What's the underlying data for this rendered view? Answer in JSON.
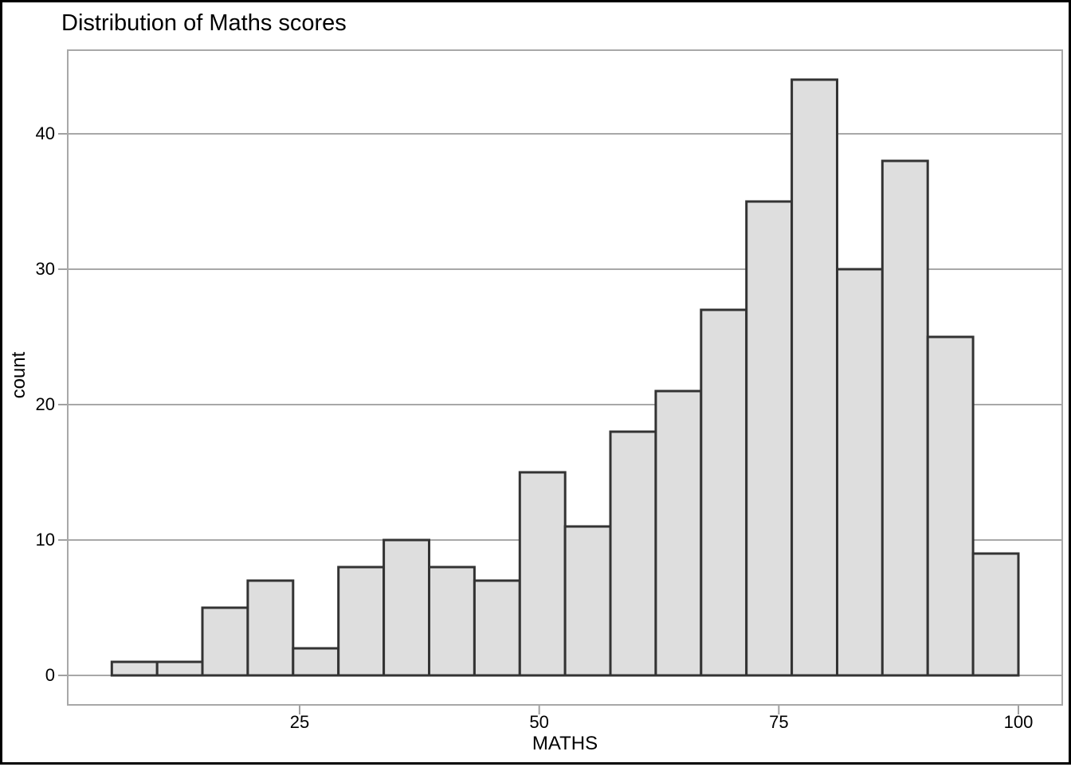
{
  "title": "Distribution of Maths scores",
  "chart_data": {
    "type": "histogram",
    "title": "Distribution of Maths scores",
    "xlabel": "MATHS",
    "ylabel": "count",
    "x_ticks": [
      25,
      50,
      75,
      100
    ],
    "y_ticks": [
      0,
      10,
      20,
      30,
      40
    ],
    "x_range": [
      0.8,
      104.6
    ],
    "y_range": [
      -2.2,
      46.2
    ],
    "grid": "horizontal-major-only",
    "legend_position": "none",
    "bins": {
      "start": 5.4,
      "width": 4.73,
      "n": 20
    },
    "counts": [
      1,
      1,
      5,
      7,
      2,
      8,
      10,
      8,
      7,
      15,
      11,
      18,
      21,
      27,
      35,
      44,
      30,
      38,
      25,
      9
    ],
    "total_observations": 322
  },
  "colors": {
    "background": "#ffffff",
    "outer_border": "#000000",
    "panel_background": "#ffffff",
    "panel_border": "#a8a8a8",
    "gridline": "#a8a8a8",
    "tick_mark": "#a0a0a0",
    "bar_fill": "#dedede",
    "bar_stroke": "#333333",
    "text": "#000000"
  }
}
